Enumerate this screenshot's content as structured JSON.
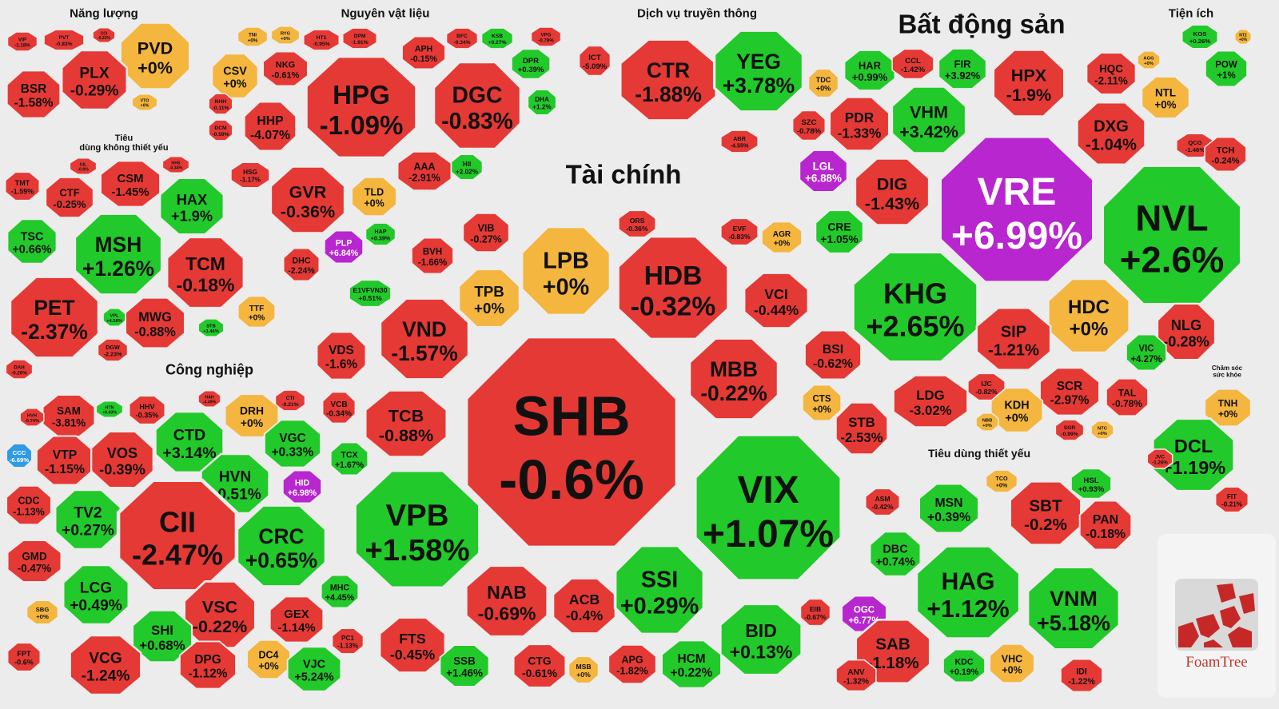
{
  "colors": {
    "red": "#e53935",
    "green": "#22c92a",
    "orange": "#f4b63f",
    "purple": "#b826cf",
    "blue": "#2f9be6",
    "gap": "#ececec"
  },
  "brand": {
    "name": "FoamTree",
    "icon": "foamtree-logo-icon"
  },
  "chart_data": {
    "type": "treemap",
    "groups": [
      {
        "name": "Năng lượng",
        "stocks": [
          [
            "VIP",
            "-1.18%"
          ],
          [
            "PVT",
            "-0.83%"
          ],
          [
            "CCI",
            "-0.22%"
          ],
          [
            "PVD",
            "+0%"
          ],
          [
            "BSR",
            "-1.58%"
          ],
          [
            "PLX",
            "-0.29%"
          ],
          [
            "VTO",
            "+0%"
          ]
        ]
      },
      {
        "name": "Nguyên vật liệu",
        "stocks": [
          [
            "TNI",
            "+0%"
          ],
          [
            "RYG",
            "+0%"
          ],
          [
            "HT1",
            "-0.95%"
          ],
          [
            "DPM",
            "-1.91%"
          ],
          [
            "BFC",
            "-0.34%"
          ],
          [
            "KSB",
            "+0.27%"
          ],
          [
            "VPG",
            "-0.78%"
          ],
          [
            "CSV",
            "+0%"
          ],
          [
            "NKG",
            "-0.61%"
          ],
          [
            "APH",
            "-0.15%"
          ],
          [
            "DPR",
            "+0.39%"
          ],
          [
            "HPG",
            "-1.09%"
          ],
          [
            "DGC",
            "-0.83%"
          ],
          [
            "HHP",
            "-4.07%"
          ],
          [
            "DHA",
            "+1.2%"
          ],
          [
            "NHH",
            "-0.11%"
          ],
          [
            "DCM",
            "-0.59%"
          ],
          [
            "AAA",
            "-2.91%"
          ],
          [
            "HSG",
            "-1.17%"
          ],
          [
            "GVR",
            "-0.36%"
          ],
          [
            "TLD",
            "+0%"
          ],
          [
            "HII",
            "+2.02%"
          ],
          [
            "HAP",
            "+0.39%"
          ],
          [
            "DHC",
            "-2.24%"
          ],
          [
            "PLP",
            "+6.84%"
          ]
        ]
      },
      {
        "name": "Dịch vụ truyền thông",
        "stocks": [
          [
            "ICT",
            "-5.09%"
          ],
          [
            "CTR",
            "-1.88%"
          ],
          [
            "YEG",
            "+3.78%"
          ],
          [
            "ABR",
            "-4.55%"
          ]
        ]
      },
      {
        "name": "Bất động sản",
        "stocks": [
          [
            "HAR",
            "+0.99%"
          ],
          [
            "CCL",
            "-1.42%"
          ],
          [
            "FIR",
            "+3.92%"
          ],
          [
            "HPX",
            "-1.9%"
          ],
          [
            "HQC",
            "-2.11%"
          ],
          [
            "TDC",
            "+0%"
          ],
          [
            "PDR",
            "-1.33%"
          ],
          [
            "VHM",
            "+3.42%"
          ],
          [
            "SZC",
            "-0.78%"
          ],
          [
            "DXG",
            "-1.04%"
          ],
          [
            "LGL",
            "+6.88%"
          ],
          [
            "DIG",
            "-1.43%"
          ],
          [
            "VRE",
            "+6.99%"
          ],
          [
            "NVL",
            "+2.6%"
          ],
          [
            "CRE",
            "+1.05%"
          ],
          [
            "KHG",
            "+2.65%"
          ],
          [
            "HDC",
            "+0%"
          ],
          [
            "SIP",
            "-1.21%"
          ],
          [
            "NLG",
            "-0.28%"
          ],
          [
            "VIC",
            "+4.27%"
          ],
          [
            "LDG",
            "-3.02%"
          ],
          [
            "SCR",
            "-2.97%"
          ],
          [
            "TAL",
            "-0.78%"
          ],
          [
            "IJC",
            "-0.82%"
          ],
          [
            "KDH",
            "+0%"
          ],
          [
            "SGR",
            "-0.99%"
          ],
          [
            "NTC",
            "+0%"
          ],
          [
            "NBB",
            "+0%"
          ]
        ]
      },
      {
        "name": "Tiện ích",
        "stocks": [
          [
            "KOS",
            "+0.26%"
          ],
          [
            "POW",
            "+1%"
          ],
          [
            "NTL",
            "+0%"
          ],
          [
            "AGG",
            "+0%"
          ],
          [
            "QCG",
            "-1.46%"
          ],
          [
            "TCH",
            "-0.24%"
          ],
          [
            "NT2",
            "+0%"
          ]
        ]
      },
      {
        "name": "Tiêu\ndùng không thiết yếu",
        "stocks": [
          [
            "GIL",
            "-0.9%"
          ],
          [
            "HHS",
            "-0.34%"
          ],
          [
            "TMT",
            "-1.59%"
          ],
          [
            "CSM",
            "-1.45%"
          ],
          [
            "CTF",
            "-0.25%"
          ],
          [
            "HAX",
            "+1.9%"
          ],
          [
            "TSC",
            "+0.66%"
          ],
          [
            "MSH",
            "+1.26%"
          ],
          [
            "TCM",
            "-0.18%"
          ],
          [
            "PET",
            "-2.37%"
          ],
          [
            "MWG",
            "-0.88%"
          ],
          [
            "TTF",
            "+0%"
          ],
          [
            "VPL",
            "+4.58%"
          ],
          [
            "STB",
            "+1.46%"
          ],
          [
            "DGW",
            "-2.23%"
          ],
          [
            "DAH",
            "-0.26%"
          ]
        ]
      },
      {
        "name": "Tài chính",
        "stocks": [
          [
            "VIB",
            "-0.27%"
          ],
          [
            "LPB",
            "+0%"
          ],
          [
            "ORS",
            "-0.36%"
          ],
          [
            "EVF",
            "-0.83%"
          ],
          [
            "AGR",
            "+0%"
          ],
          [
            "BVH",
            "-1.66%"
          ],
          [
            "TPB",
            "+0%"
          ],
          [
            "HDB",
            "-0.32%"
          ],
          [
            "VCI",
            "-0.44%"
          ],
          [
            "E1VFVN30",
            "+0.51%"
          ],
          [
            "VND",
            "-1.57%"
          ],
          [
            "VDS",
            "-1.6%"
          ],
          [
            "BSI",
            "-0.62%"
          ],
          [
            "MBB",
            "-0.22%"
          ],
          [
            "TCB",
            "-0.88%"
          ],
          [
            "SHB",
            "-0.6%"
          ],
          [
            "CTS",
            "+0%"
          ],
          [
            "STB",
            "-2.53%"
          ],
          [
            "VCB",
            "-0.34%"
          ],
          [
            "TCX",
            "+1.67%"
          ],
          [
            "VIX",
            "+1.07%"
          ],
          [
            "VPB",
            "+1.58%"
          ],
          [
            "NAB",
            "-0.69%"
          ],
          [
            "ACB",
            "-0.4%"
          ],
          [
            "SSI",
            "+0.29%"
          ],
          [
            "BID",
            "+0.13%"
          ],
          [
            "EIB",
            "-0.67%"
          ],
          [
            "FTS",
            "-0.45%"
          ],
          [
            "APG",
            "-1.82%"
          ],
          [
            "HCM",
            "+0.22%"
          ],
          [
            "SSB",
            "+1.46%"
          ],
          [
            "CTG",
            "-0.61%"
          ],
          [
            "MSB",
            "+0%"
          ]
        ]
      },
      {
        "name": "Công nghiệp",
        "stocks": [
          [
            "SAM",
            "-3.81%"
          ],
          [
            "HHV",
            "-0.35%"
          ],
          [
            "HAH",
            "-4.49%"
          ],
          [
            "CTI",
            "-0.21%"
          ],
          [
            "HVH",
            "-0.74%"
          ],
          [
            "HTN",
            "+0.43%"
          ],
          [
            "DRH",
            "+0%"
          ],
          [
            "VTP",
            "-1.15%"
          ],
          [
            "VOS",
            "-0.39%"
          ],
          [
            "CTD",
            "+3.14%"
          ],
          [
            "VGC",
            "+0.33%"
          ],
          [
            "CCC",
            "-6.69%"
          ],
          [
            "HVN",
            "+0.51%"
          ],
          [
            "HID",
            "+6.98%"
          ],
          [
            "CDC",
            "-1.13%"
          ],
          [
            "TV2",
            "+0.27%"
          ],
          [
            "CII",
            "-2.47%"
          ],
          [
            "CRC",
            "+0.65%"
          ],
          [
            "GMD",
            "-0.47%"
          ],
          [
            "LCG",
            "+0.49%"
          ],
          [
            "MHC",
            "+4.45%"
          ],
          [
            "SBG",
            "+0%"
          ],
          [
            "VSC",
            "-0.22%"
          ],
          [
            "GEX",
            "-1.14%"
          ],
          [
            "SHI",
            "+0.68%"
          ],
          [
            "PC1",
            "-1.13%"
          ],
          [
            "FPT",
            "-0.6%"
          ],
          [
            "VCG",
            "-1.24%"
          ],
          [
            "DPG",
            "-1.12%"
          ],
          [
            "DC4",
            "+0%"
          ],
          [
            "VJC",
            "+5.24%"
          ]
        ]
      },
      {
        "name": "Tiêu dùng thiết yếu",
        "stocks": [
          [
            "ASM",
            "-0.42%"
          ],
          [
            "TCO",
            "+0%"
          ],
          [
            "HSL",
            "+0.93%"
          ],
          [
            "MSN",
            "+0.39%"
          ],
          [
            "SBT",
            "-0.2%"
          ],
          [
            "PAN",
            "-0.18%"
          ],
          [
            "DBC",
            "+0.74%"
          ],
          [
            "HAG",
            "+1.12%"
          ],
          [
            "VNM",
            "+5.18%"
          ],
          [
            "OGC",
            "+6.77%"
          ],
          [
            "SAB",
            "-1.18%"
          ],
          [
            "VHC",
            "+0%"
          ],
          [
            "KDC",
            "+0.19%"
          ],
          [
            "IDI",
            "-1.22%"
          ],
          [
            "ANV",
            "-1.32%"
          ]
        ]
      },
      {
        "name": "Chăm sóc\nsức khỏe",
        "stocks": [
          [
            "TNH",
            "+0%"
          ],
          [
            "DCL",
            "+1.19%"
          ],
          [
            "JVC",
            "-1.26%"
          ],
          [
            "FIT",
            "-0.21%"
          ]
        ]
      }
    ]
  }
}
